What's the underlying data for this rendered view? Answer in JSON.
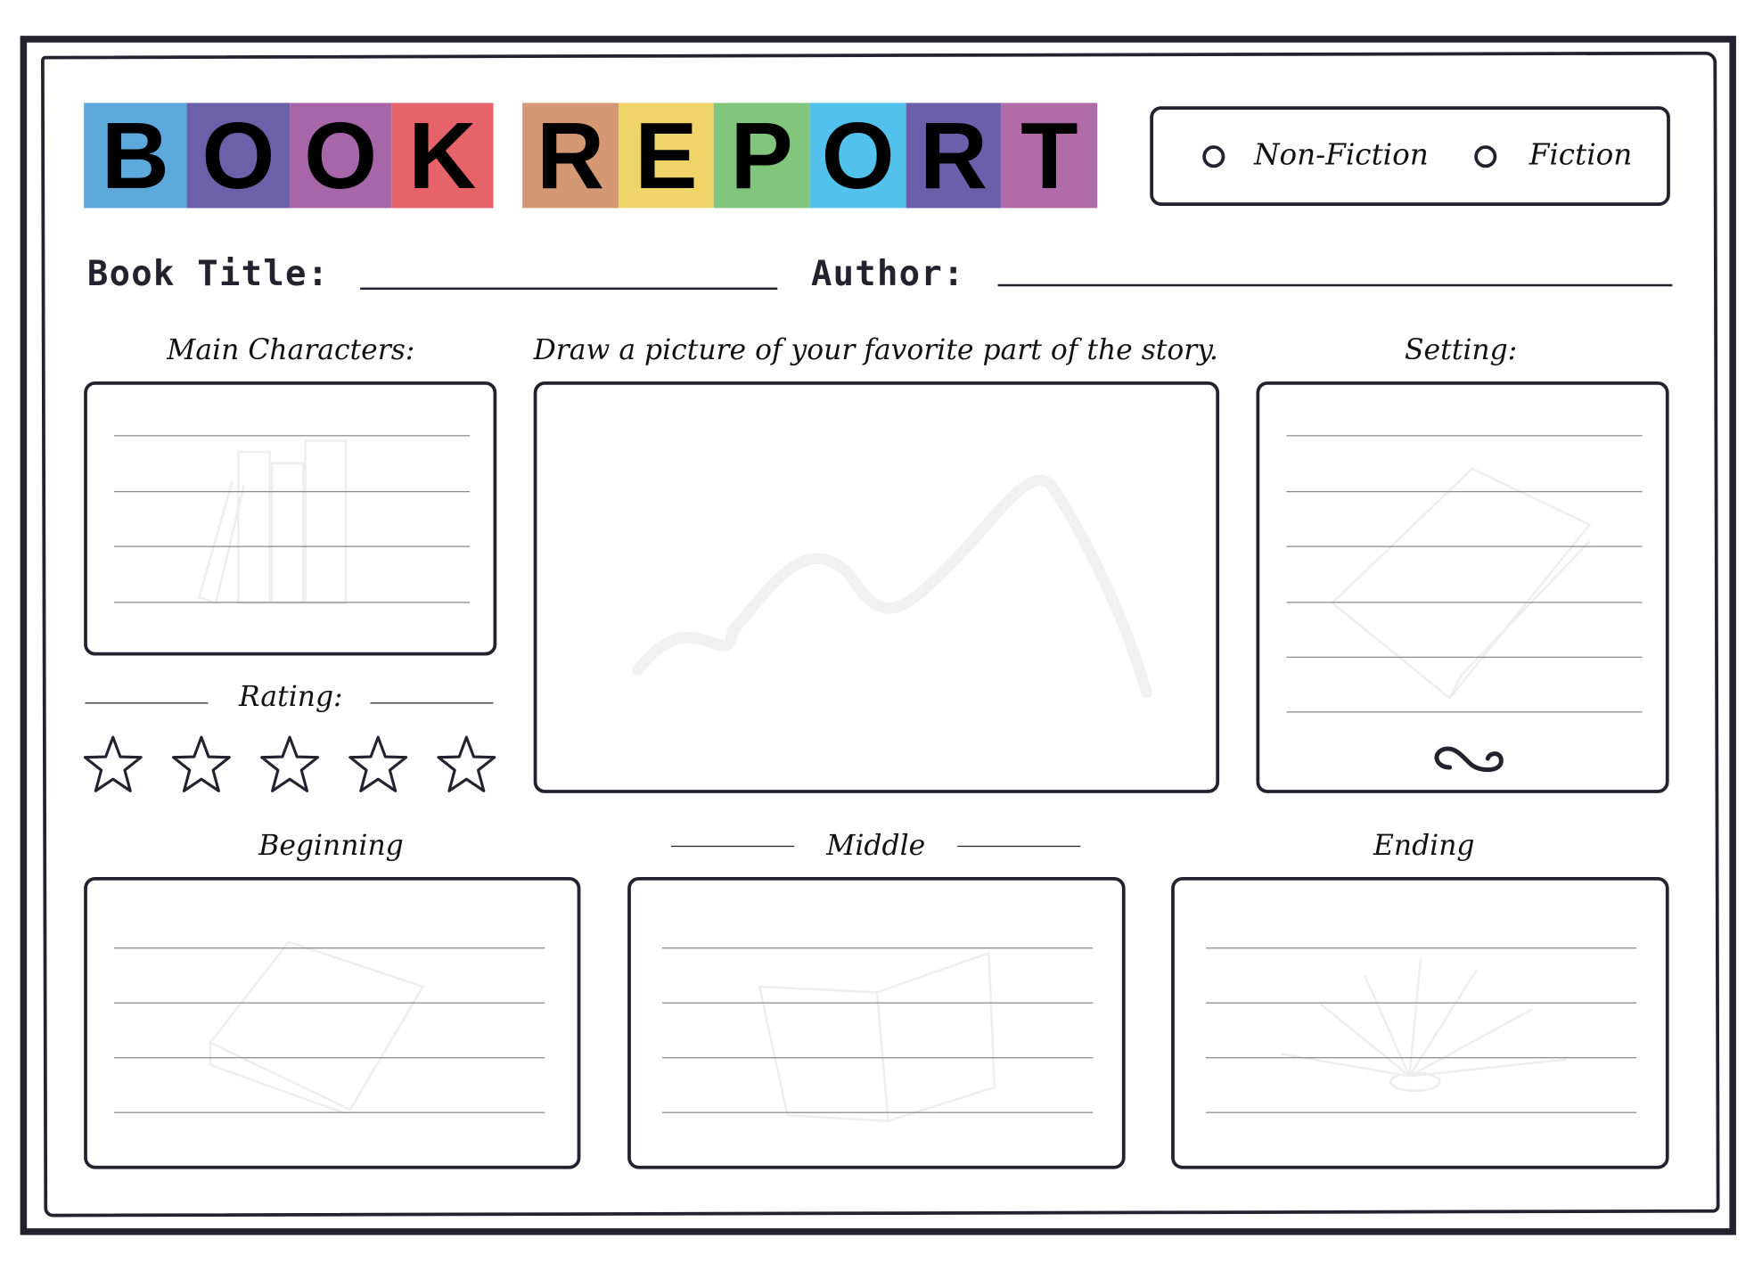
{
  "title": {
    "word1": [
      {
        "letter": "B",
        "color": "#5ea9dc"
      },
      {
        "letter": "O",
        "color": "#6c60a8"
      },
      {
        "letter": "O",
        "color": "#a766a8"
      },
      {
        "letter": "K",
        "color": "#e7636a"
      }
    ],
    "word2": [
      {
        "letter": "R",
        "color": "#d49874"
      },
      {
        "letter": "E",
        "color": "#efd46a"
      },
      {
        "letter": "P",
        "color": "#82c67e"
      },
      {
        "letter": "O",
        "color": "#52c2ec"
      },
      {
        "letter": "R",
        "color": "#6b5fa9"
      },
      {
        "letter": "T",
        "color": "#b06ba9"
      }
    ]
  },
  "genre": {
    "options": [
      "Non-Fiction",
      "Fiction"
    ]
  },
  "fields": {
    "book_title": "Book Title:",
    "author": "Author:"
  },
  "sections": {
    "main_characters": "Main Characters:",
    "drawing": "Draw a picture of your favorite part of the story.",
    "setting": "Setting:",
    "rating": "Rating:",
    "beginning": "Beginning",
    "middle": "Middle",
    "ending": "Ending"
  },
  "rating": {
    "max_stars": 5,
    "filled": 0
  }
}
